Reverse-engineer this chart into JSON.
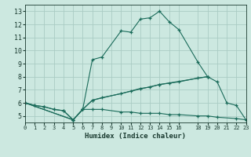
{
  "xlabel": "Humidex (Indice chaleur)",
  "bg_color": "#cce8e0",
  "grid_color": "#aaccc4",
  "line_color": "#1a6b5a",
  "lines": [
    {
      "x": [
        0,
        1,
        2,
        3,
        4,
        5,
        6,
        7,
        8,
        10,
        11,
        12,
        13,
        14,
        15,
        16,
        18,
        19,
        20,
        21,
        22,
        23
      ],
      "y": [
        6.0,
        5.8,
        5.7,
        5.5,
        5.4,
        4.7,
        5.5,
        9.3,
        9.5,
        11.5,
        11.4,
        12.4,
        12.5,
        13.0,
        12.2,
        11.6,
        9.1,
        8.0,
        7.6,
        6.0,
        5.8,
        4.7
      ]
    },
    {
      "x": [
        0,
        1,
        2,
        3,
        4,
        5,
        6,
        7,
        8,
        10,
        11,
        12,
        13,
        14,
        15,
        16,
        18,
        19
      ],
      "y": [
        6.0,
        5.8,
        5.7,
        5.5,
        5.4,
        4.7,
        5.5,
        6.2,
        6.4,
        6.7,
        6.9,
        7.1,
        7.2,
        7.4,
        7.5,
        7.6,
        7.9,
        8.0
      ]
    },
    {
      "x": [
        0,
        5,
        6,
        7,
        14,
        19
      ],
      "y": [
        6.0,
        4.7,
        5.5,
        6.2,
        7.4,
        8.0
      ]
    },
    {
      "x": [
        0,
        5,
        6,
        7,
        8,
        10,
        11,
        12,
        13,
        14,
        15,
        16,
        18,
        19,
        20,
        22,
        23
      ],
      "y": [
        6.0,
        4.7,
        5.5,
        5.5,
        5.5,
        5.3,
        5.3,
        5.2,
        5.2,
        5.2,
        5.1,
        5.1,
        5.0,
        5.0,
        4.9,
        4.8,
        4.7
      ]
    }
  ],
  "xlim": [
    0,
    23
  ],
  "ylim": [
    4.5,
    13.5
  ],
  "yticks": [
    5,
    6,
    7,
    8,
    9,
    10,
    11,
    12,
    13
  ],
  "xticks": [
    0,
    1,
    2,
    3,
    4,
    5,
    6,
    7,
    8,
    9,
    10,
    11,
    12,
    13,
    14,
    15,
    16,
    18,
    19,
    20,
    21,
    22,
    23
  ],
  "xticklabels": [
    "0",
    "1",
    "2",
    "3",
    "4",
    "5",
    "6",
    "7",
    "8",
    "9",
    "10",
    "11",
    "12",
    "13",
    "14",
    "15",
    "16",
    "18",
    "19",
    "20",
    "21",
    "22",
    "23"
  ]
}
